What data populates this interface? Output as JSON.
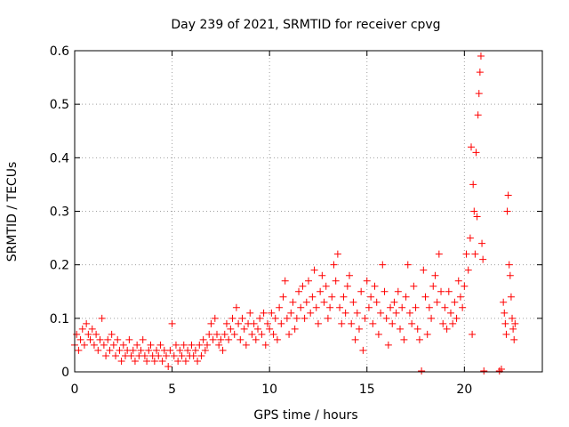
{
  "chart_data": {
    "type": "scatter",
    "title": "Day 239 of 2021, SRMTID for receiver cpvg",
    "xlabel": "GPS time / hours",
    "ylabel": "SRMTID / TECUs",
    "xlim": [
      0,
      24
    ],
    "ylim": [
      0,
      0.6
    ],
    "x_ticks": [
      0,
      5,
      10,
      15,
      20
    ],
    "y_ticks": [
      0,
      0.1,
      0.2,
      0.3,
      0.4,
      0.5,
      0.6
    ],
    "x_tick_labels": [
      "0",
      "5",
      "10",
      "15",
      "20"
    ],
    "y_tick_labels": [
      "0",
      "0.1",
      "0.2",
      "0.3",
      "0.4",
      "0.5",
      "0.6"
    ],
    "grid": true,
    "marker": "plus",
    "color": "#ff0000",
    "series": [
      {
        "name": "SRMTID",
        "points": [
          [
            0.0,
            0.05
          ],
          [
            0.1,
            0.07
          ],
          [
            0.2,
            0.04
          ],
          [
            0.3,
            0.06
          ],
          [
            0.4,
            0.08
          ],
          [
            0.5,
            0.05
          ],
          [
            0.6,
            0.09
          ],
          [
            0.7,
            0.07
          ],
          [
            0.8,
            0.06
          ],
          [
            0.9,
            0.08
          ],
          [
            1.0,
            0.05
          ],
          [
            1.1,
            0.07
          ],
          [
            1.2,
            0.04
          ],
          [
            1.3,
            0.06
          ],
          [
            1.4,
            0.1
          ],
          [
            1.5,
            0.05
          ],
          [
            1.6,
            0.03
          ],
          [
            1.7,
            0.06
          ],
          [
            1.8,
            0.04
          ],
          [
            1.9,
            0.07
          ],
          [
            2.0,
            0.05
          ],
          [
            2.1,
            0.03
          ],
          [
            2.2,
            0.06
          ],
          [
            2.3,
            0.04
          ],
          [
            2.4,
            0.02
          ],
          [
            2.5,
            0.05
          ],
          [
            2.6,
            0.03
          ],
          [
            2.7,
            0.04
          ],
          [
            2.8,
            0.06
          ],
          [
            2.9,
            0.03
          ],
          [
            3.0,
            0.04
          ],
          [
            3.1,
            0.02
          ],
          [
            3.2,
            0.05
          ],
          [
            3.3,
            0.03
          ],
          [
            3.4,
            0.04
          ],
          [
            3.5,
            0.06
          ],
          [
            3.6,
            0.03
          ],
          [
            3.7,
            0.02
          ],
          [
            3.8,
            0.04
          ],
          [
            3.9,
            0.05
          ],
          [
            4.0,
            0.03
          ],
          [
            4.1,
            0.02
          ],
          [
            4.2,
            0.04
          ],
          [
            4.3,
            0.03
          ],
          [
            4.4,
            0.05
          ],
          [
            4.5,
            0.02
          ],
          [
            4.6,
            0.04
          ],
          [
            4.7,
            0.03
          ],
          [
            4.8,
            0.01
          ],
          [
            4.9,
            0.04
          ],
          [
            5.0,
            0.09
          ],
          [
            5.1,
            0.03
          ],
          [
            5.2,
            0.05
          ],
          [
            5.3,
            0.02
          ],
          [
            5.4,
            0.04
          ],
          [
            5.5,
            0.03
          ],
          [
            5.6,
            0.05
          ],
          [
            5.7,
            0.02
          ],
          [
            5.8,
            0.04
          ],
          [
            5.9,
            0.03
          ],
          [
            6.0,
            0.05
          ],
          [
            6.1,
            0.03
          ],
          [
            6.2,
            0.04
          ],
          [
            6.3,
            0.02
          ],
          [
            6.4,
            0.05
          ],
          [
            6.5,
            0.03
          ],
          [
            6.6,
            0.06
          ],
          [
            6.7,
            0.04
          ],
          [
            6.8,
            0.05
          ],
          [
            6.9,
            0.07
          ],
          [
            7.0,
            0.09
          ],
          [
            7.1,
            0.06
          ],
          [
            7.2,
            0.1
          ],
          [
            7.3,
            0.07
          ],
          [
            7.4,
            0.05
          ],
          [
            7.5,
            0.06
          ],
          [
            7.6,
            0.04
          ],
          [
            7.7,
            0.07
          ],
          [
            7.8,
            0.09
          ],
          [
            7.9,
            0.06
          ],
          [
            8.0,
            0.08
          ],
          [
            8.1,
            0.1
          ],
          [
            8.2,
            0.07
          ],
          [
            8.3,
            0.12
          ],
          [
            8.4,
            0.09
          ],
          [
            8.5,
            0.06
          ],
          [
            8.6,
            0.1
          ],
          [
            8.7,
            0.08
          ],
          [
            8.8,
            0.05
          ],
          [
            8.9,
            0.09
          ],
          [
            9.0,
            0.11
          ],
          [
            9.1,
            0.07
          ],
          [
            9.2,
            0.09
          ],
          [
            9.3,
            0.06
          ],
          [
            9.4,
            0.08
          ],
          [
            9.5,
            0.1
          ],
          [
            9.6,
            0.07
          ],
          [
            9.7,
            0.11
          ],
          [
            9.8,
            0.05
          ],
          [
            9.9,
            0.09
          ],
          [
            10.0,
            0.08
          ],
          [
            10.1,
            0.11
          ],
          [
            10.2,
            0.07
          ],
          [
            10.3,
            0.1
          ],
          [
            10.4,
            0.06
          ],
          [
            10.5,
            0.12
          ],
          [
            10.6,
            0.09
          ],
          [
            10.7,
            0.14
          ],
          [
            10.8,
            0.17
          ],
          [
            10.9,
            0.1
          ],
          [
            11.0,
            0.07
          ],
          [
            11.1,
            0.11
          ],
          [
            11.2,
            0.13
          ],
          [
            11.3,
            0.08
          ],
          [
            11.4,
            0.1
          ],
          [
            11.5,
            0.15
          ],
          [
            11.6,
            0.12
          ],
          [
            11.7,
            0.16
          ],
          [
            11.8,
            0.1
          ],
          [
            11.9,
            0.13
          ],
          [
            12.0,
            0.17
          ],
          [
            12.1,
            0.11
          ],
          [
            12.2,
            0.14
          ],
          [
            12.3,
            0.19
          ],
          [
            12.4,
            0.12
          ],
          [
            12.5,
            0.09
          ],
          [
            12.6,
            0.15
          ],
          [
            12.7,
            0.18
          ],
          [
            12.8,
            0.13
          ],
          [
            12.9,
            0.16
          ],
          [
            13.0,
            0.1
          ],
          [
            13.1,
            0.12
          ],
          [
            13.2,
            0.14
          ],
          [
            13.3,
            0.2
          ],
          [
            13.4,
            0.17
          ],
          [
            13.5,
            0.22
          ],
          [
            13.6,
            0.12
          ],
          [
            13.7,
            0.09
          ],
          [
            13.8,
            0.14
          ],
          [
            13.9,
            0.11
          ],
          [
            14.0,
            0.16
          ],
          [
            14.1,
            0.18
          ],
          [
            14.2,
            0.09
          ],
          [
            14.3,
            0.13
          ],
          [
            14.4,
            0.06
          ],
          [
            14.5,
            0.11
          ],
          [
            14.6,
            0.08
          ],
          [
            14.7,
            0.15
          ],
          [
            14.8,
            0.04
          ],
          [
            14.9,
            0.1
          ],
          [
            15.0,
            0.17
          ],
          [
            15.1,
            0.12
          ],
          [
            15.2,
            0.14
          ],
          [
            15.3,
            0.09
          ],
          [
            15.4,
            0.16
          ],
          [
            15.5,
            0.13
          ],
          [
            15.6,
            0.07
          ],
          [
            15.7,
            0.11
          ],
          [
            15.8,
            0.2
          ],
          [
            15.9,
            0.15
          ],
          [
            16.0,
            0.1
          ],
          [
            16.1,
            0.05
          ],
          [
            16.2,
            0.12
          ],
          [
            16.3,
            0.09
          ],
          [
            16.4,
            0.13
          ],
          [
            16.5,
            0.11
          ],
          [
            16.6,
            0.15
          ],
          [
            16.7,
            0.08
          ],
          [
            16.8,
            0.12
          ],
          [
            16.9,
            0.06
          ],
          [
            17.0,
            0.14
          ],
          [
            17.1,
            0.2
          ],
          [
            17.2,
            0.11
          ],
          [
            17.3,
            0.09
          ],
          [
            17.4,
            0.16
          ],
          [
            17.5,
            0.12
          ],
          [
            17.6,
            0.08
          ],
          [
            17.7,
            0.06
          ],
          [
            17.8,
            0.0
          ],
          [
            17.9,
            0.19
          ],
          [
            18.0,
            0.14
          ],
          [
            18.1,
            0.07
          ],
          [
            18.2,
            0.12
          ],
          [
            18.3,
            0.1
          ],
          [
            18.4,
            0.16
          ],
          [
            18.5,
            0.18
          ],
          [
            18.6,
            0.13
          ],
          [
            18.7,
            0.22
          ],
          [
            18.8,
            0.15
          ],
          [
            18.9,
            0.09
          ],
          [
            19.0,
            0.12
          ],
          [
            19.1,
            0.08
          ],
          [
            19.2,
            0.15
          ],
          [
            19.3,
            0.11
          ],
          [
            19.4,
            0.09
          ],
          [
            19.5,
            0.13
          ],
          [
            19.6,
            0.1
          ],
          [
            19.7,
            0.17
          ],
          [
            19.8,
            0.14
          ],
          [
            19.9,
            0.12
          ],
          [
            20.0,
            0.16
          ],
          [
            20.1,
            0.22
          ],
          [
            20.2,
            0.19
          ],
          [
            20.3,
            0.25
          ],
          [
            20.35,
            0.42
          ],
          [
            20.4,
            0.07
          ],
          [
            20.45,
            0.35
          ],
          [
            20.5,
            0.3
          ],
          [
            20.55,
            0.22
          ],
          [
            20.6,
            0.41
          ],
          [
            20.65,
            0.29
          ],
          [
            20.7,
            0.48
          ],
          [
            20.75,
            0.52
          ],
          [
            20.8,
            0.56
          ],
          [
            20.85,
            0.59
          ],
          [
            20.9,
            0.24
          ],
          [
            20.95,
            0.21
          ],
          [
            21.0,
            0.0
          ],
          [
            21.8,
            0.0
          ],
          [
            21.9,
            0.005
          ],
          [
            22.0,
            0.13
          ],
          [
            22.05,
            0.11
          ],
          [
            22.1,
            0.09
          ],
          [
            22.15,
            0.07
          ],
          [
            22.2,
            0.3
          ],
          [
            22.25,
            0.33
          ],
          [
            22.3,
            0.2
          ],
          [
            22.35,
            0.18
          ],
          [
            22.4,
            0.14
          ],
          [
            22.45,
            0.1
          ],
          [
            22.5,
            0.08
          ],
          [
            22.55,
            0.06
          ],
          [
            22.6,
            0.09
          ]
        ]
      }
    ]
  }
}
